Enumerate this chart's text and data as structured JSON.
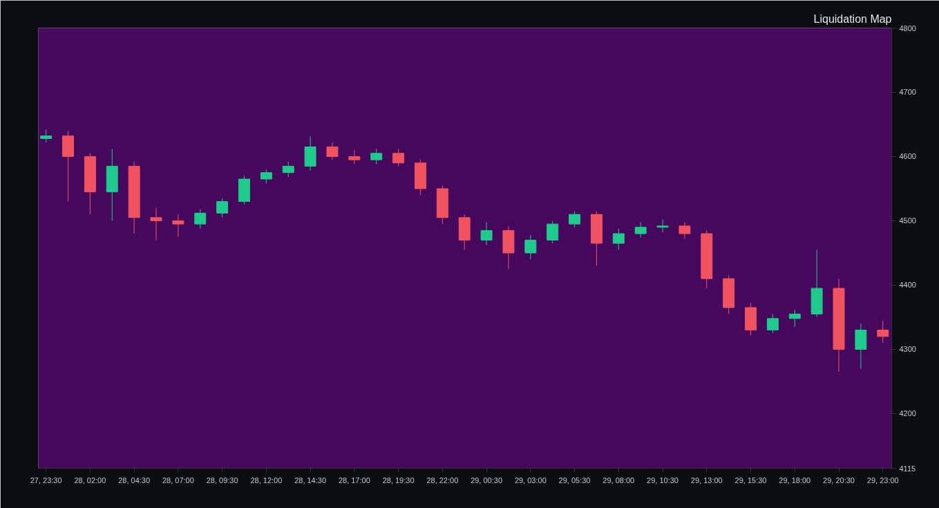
{
  "chart_data": {
    "type": "candlestick",
    "categories": [
      "27, 23:30",
      null,
      "28, 02:00",
      null,
      "28, 04:30",
      null,
      "28, 07:00",
      null,
      "28, 09:30",
      null,
      "28, 12:00",
      null,
      "28, 14:30",
      null,
      "28, 17:00",
      null,
      "28, 19:30",
      null,
      "28, 22:00",
      null,
      "29, 00:30",
      null,
      "29, 03:00",
      null,
      "29, 05:30",
      null,
      "29, 08:00",
      null,
      "29, 10:30",
      null,
      "29, 13:00",
      null,
      "29, 15:30",
      null,
      "29, 18:00",
      null,
      "29, 20:30",
      null,
      "29, 23:00"
    ],
    "ohlc": [
      [
        4628,
        4642,
        4622,
        4632
      ],
      [
        4632,
        4640,
        4530,
        4600
      ],
      [
        4600,
        4605,
        4510,
        4545
      ],
      [
        4545,
        4612,
        4500,
        4585
      ],
      [
        4585,
        4592,
        4480,
        4505
      ],
      [
        4505,
        4520,
        4470,
        4500
      ],
      [
        4500,
        4510,
        4475,
        4495
      ],
      [
        4495,
        4518,
        4488,
        4512
      ],
      [
        4512,
        4535,
        4505,
        4530
      ],
      [
        4530,
        4570,
        4525,
        4565
      ],
      [
        4565,
        4580,
        4558,
        4575
      ],
      [
        4575,
        4592,
        4568,
        4585
      ],
      [
        4585,
        4632,
        4578,
        4615
      ],
      [
        4615,
        4622,
        4595,
        4600
      ],
      [
        4600,
        4610,
        4588,
        4595
      ],
      [
        4595,
        4612,
        4588,
        4605
      ],
      [
        4605,
        4612,
        4585,
        4590
      ],
      [
        4590,
        4595,
        4540,
        4550
      ],
      [
        4550,
        4555,
        4495,
        4505
      ],
      [
        4505,
        4510,
        4455,
        4470
      ],
      [
        4470,
        4498,
        4462,
        4485
      ],
      [
        4485,
        4492,
        4425,
        4450
      ],
      [
        4450,
        4478,
        4440,
        4470
      ],
      [
        4470,
        4500,
        4465,
        4495
      ],
      [
        4495,
        4515,
        4490,
        4510
      ],
      [
        4510,
        4515,
        4430,
        4465
      ],
      [
        4465,
        4488,
        4455,
        4480
      ],
      [
        4480,
        4498,
        4474,
        4490
      ],
      [
        4490,
        4502,
        4482,
        4492
      ],
      [
        4492,
        4498,
        4472,
        4480
      ],
      [
        4480,
        4485,
        4395,
        4410
      ],
      [
        4410,
        4415,
        4355,
        4365
      ],
      [
        4365,
        4372,
        4322,
        4330
      ],
      [
        4330,
        4355,
        4325,
        4348
      ],
      [
        4348,
        4362,
        4335,
        4355
      ],
      [
        4355,
        4455,
        4350,
        4395
      ],
      [
        4395,
        4410,
        4265,
        4300
      ],
      [
        4300,
        4340,
        4270,
        4330
      ],
      [
        4330,
        4345,
        4310,
        4320
      ]
    ],
    "ylim": [
      4115,
      4800
    ],
    "yticks": [
      4115,
      4200,
      4300,
      4400,
      4500,
      4600,
      4700,
      4800
    ],
    "annotations": [
      "Liquidation Map"
    ]
  }
}
